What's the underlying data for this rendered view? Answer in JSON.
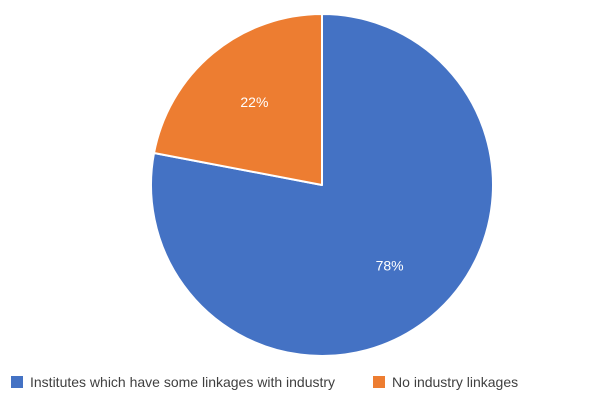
{
  "chart_data": {
    "type": "pie",
    "title": "",
    "slices": [
      {
        "name": "Institutes which have some linkages with industry",
        "value": 78,
        "label": "78%",
        "color": "#4472C4"
      },
      {
        "name": "No industry linkages",
        "value": 22,
        "label": "22%",
        "color": "#ED7D31"
      }
    ],
    "start": "12 o'clock, clockwise",
    "legend": "bottom"
  }
}
